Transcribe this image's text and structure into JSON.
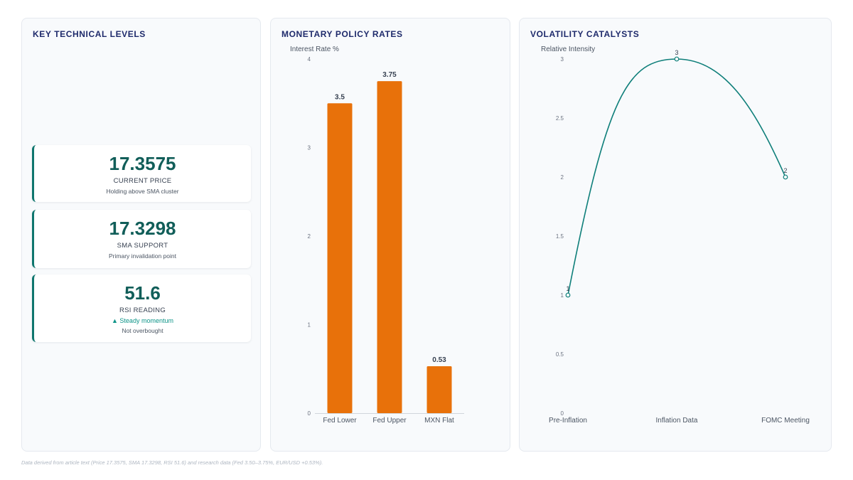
{
  "levels_panel": {
    "title": "KEY TECHNICAL LEVELS",
    "cards": [
      {
        "value": "17.3575",
        "label": "CURRENT PRICE",
        "sub": "Holding above SMA cluster"
      },
      {
        "value": "17.3298",
        "label": "SMA SUPPORT",
        "sub": "Primary invalidation point"
      },
      {
        "value": "51.6",
        "label": "RSI READING",
        "trend": "▲ Steady momentum",
        "sub": "Not overbought"
      }
    ]
  },
  "rates_panel": {
    "title": "MONETARY POLICY RATES"
  },
  "vol_panel": {
    "title": "VOLATILITY CATALYSTS"
  },
  "footnote": "Data derived from article text (Price 17.3575, SMA 17.3298, RSI 51.6) and research data (Fed 3.50–3.75%, EUR/USD +0.53%).",
  "colors": {
    "bar": "#e8710a",
    "line": "#0f7f7a",
    "accent": "#0f766e"
  },
  "chart_data": [
    {
      "type": "bar",
      "title": "",
      "ylabel": "Interest Rate %",
      "categories": [
        "Fed Lower",
        "Fed Upper",
        "MXN Flat"
      ],
      "values": [
        3.5,
        3.75,
        0.53
      ],
      "data_labels": [
        "3.5",
        "3.75",
        "0.53"
      ],
      "ylim": [
        0,
        4
      ],
      "yticks": [
        0,
        1,
        2,
        3,
        4
      ],
      "grid": false
    },
    {
      "type": "line",
      "title": "",
      "ylabel": "Relative Intensity",
      "categories": [
        "Pre-Inflation",
        "Inflation Data",
        "FOMC Meeting"
      ],
      "values": [
        1,
        3,
        2
      ],
      "data_labels": [
        "1",
        "3",
        "2"
      ],
      "ylim": [
        0,
        3
      ],
      "yticks": [
        0,
        0.5,
        1,
        1.5,
        2,
        2.5,
        3
      ],
      "grid": false
    }
  ]
}
